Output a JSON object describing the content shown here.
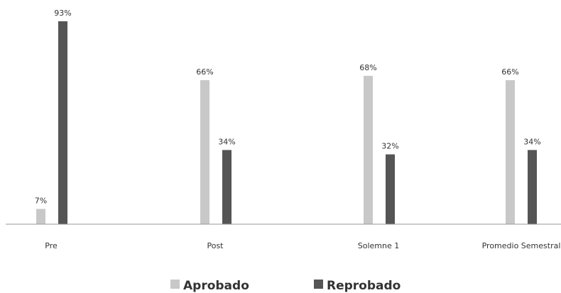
{
  "chart_data": {
    "type": "bar",
    "title": "",
    "xlabel": "",
    "ylabel": "",
    "ylim": [
      0,
      100
    ],
    "grid": false,
    "legend_position": "bottom-center",
    "value_suffix": "%",
    "categories": [
      "Pre",
      "Post",
      "Solemne 1",
      "Promedio Semestral"
    ],
    "series": [
      {
        "name": "Aprobado",
        "color": "#c8c8c8",
        "values": [
          7,
          66,
          68,
          66
        ]
      },
      {
        "name": "Reprobado",
        "color": "#555555",
        "values": [
          93,
          34,
          32,
          34
        ]
      }
    ]
  },
  "colors": {
    "axis": "#999999",
    "text": "#333333"
  }
}
